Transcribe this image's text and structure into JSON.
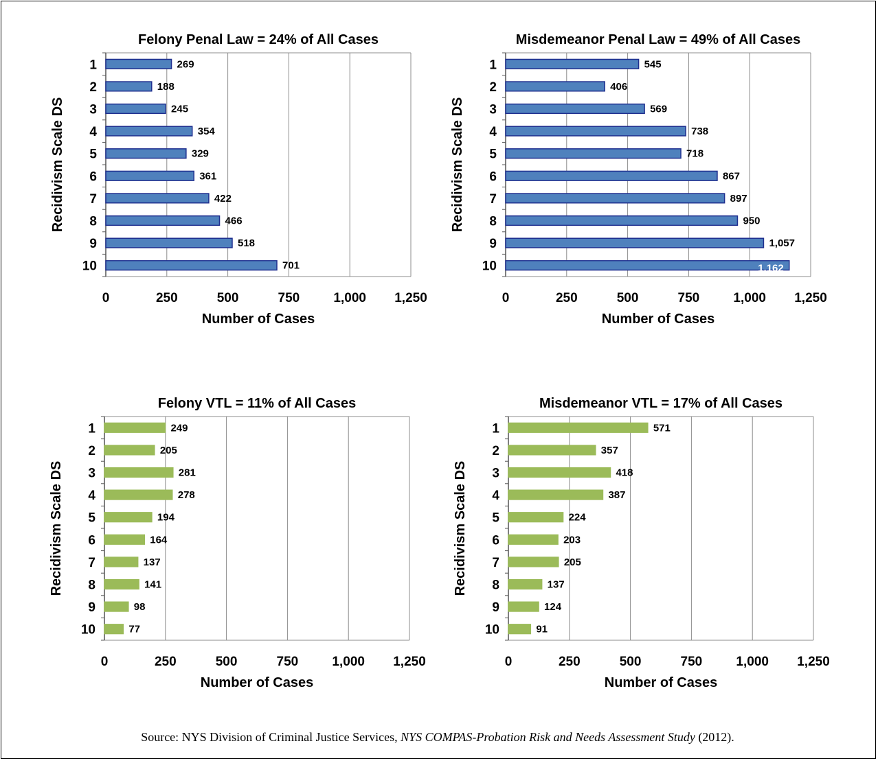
{
  "chart_data": [
    {
      "type": "bar",
      "orientation": "horizontal",
      "title": "Felony Penal Law = 24% of All Cases",
      "xlabel": "Number of Cases",
      "ylabel": "Recidivism Scale DS",
      "categories": [
        "1",
        "2",
        "3",
        "4",
        "5",
        "6",
        "7",
        "8",
        "9",
        "10"
      ],
      "values": [
        269,
        188,
        245,
        354,
        329,
        361,
        422,
        466,
        518,
        701
      ],
      "value_labels": [
        "269",
        "188",
        "245",
        "354",
        "329",
        "361",
        "422",
        "466",
        "518",
        "701"
      ],
      "xlim": [
        0,
        1250
      ],
      "xticks": [
        "0",
        "250",
        "500",
        "750",
        "1,000",
        "1,250"
      ],
      "grid": true,
      "bar_color": "#4F81BD",
      "bar_edge": "#1F2F8F"
    },
    {
      "type": "bar",
      "orientation": "horizontal",
      "title": "Misdemeanor  Penal Law = 49% of All Cases",
      "xlabel": "Number of Cases",
      "ylabel": "Recidivism Scale DS",
      "categories": [
        "1",
        "2",
        "3",
        "4",
        "5",
        "6",
        "7",
        "8",
        "9",
        "10"
      ],
      "values": [
        545,
        406,
        569,
        738,
        718,
        867,
        897,
        950,
        1057,
        1162
      ],
      "value_labels": [
        "545",
        "406",
        "569",
        "738",
        "718",
        "867",
        "897",
        "950",
        "1,057",
        "1,162"
      ],
      "xlim": [
        0,
        1250
      ],
      "xticks": [
        "0",
        "250",
        "500",
        "750",
        "1,000",
        "1,250"
      ],
      "grid": true,
      "bar_color": "#4F81BD",
      "bar_edge": "#1F2F8F"
    },
    {
      "type": "bar",
      "orientation": "horizontal",
      "title": "Felony VTL = 11% of All Cases",
      "xlabel": "Number of Cases",
      "ylabel": "Recidivism Scale DS",
      "categories": [
        "1",
        "2",
        "3",
        "4",
        "5",
        "6",
        "7",
        "8",
        "9",
        "10"
      ],
      "values": [
        249,
        205,
        281,
        278,
        194,
        164,
        137,
        141,
        98,
        77
      ],
      "value_labels": [
        "249",
        "205",
        "281",
        "278",
        "194",
        "164",
        "137",
        "141",
        "98",
        "77"
      ],
      "xlim": [
        0,
        1250
      ],
      "xticks": [
        "0",
        "250",
        "500",
        "750",
        "1,000",
        "1,250"
      ],
      "grid": true,
      "bar_color": "#9BBB59",
      "bar_edge": "#9BBB59"
    },
    {
      "type": "bar",
      "orientation": "horizontal",
      "title": "Misdemeanor  VTL = 17% of All Cases",
      "xlabel": "Number of Cases",
      "ylabel": "Recidivism Scale DS",
      "categories": [
        "1",
        "2",
        "3",
        "4",
        "5",
        "6",
        "7",
        "8",
        "9",
        "10"
      ],
      "values": [
        571,
        357,
        418,
        387,
        224,
        203,
        205,
        137,
        124,
        91
      ],
      "value_labels": [
        "571",
        "357",
        "418",
        "387",
        "224",
        "203",
        "205",
        "137",
        "124",
        "91"
      ],
      "xlim": [
        0,
        1250
      ],
      "xticks": [
        "0",
        "250",
        "500",
        "750",
        "1,000",
        "1,250"
      ],
      "grid": true,
      "bar_color": "#9BBB59",
      "bar_edge": "#9BBB59"
    }
  ],
  "source": {
    "prefix": "Source: NYS Division of Criminal Justice Services, ",
    "title": "NYS COMPAS-Probation Risk and Needs Assessment Study",
    "suffix": " (2012)."
  }
}
